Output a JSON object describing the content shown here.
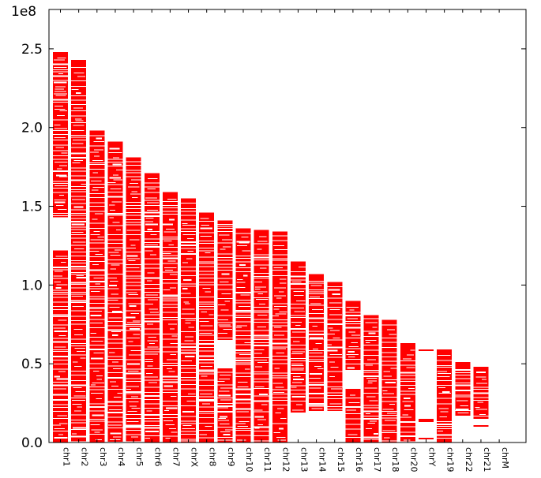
{
  "chart_data": {
    "type": "bar",
    "title": "",
    "xlabel": "",
    "ylabel": "",
    "y_offset_label": "1e8",
    "ylim": [
      0,
      2.75
    ],
    "y_scale_factor": 100000000,
    "y_ticks": [
      0.0,
      0.5,
      1.0,
      1.5,
      2.0,
      2.5
    ],
    "y_tick_labels": [
      "0.0",
      "0.5",
      "1.0",
      "1.5",
      "2.0",
      "2.5"
    ],
    "grid": false,
    "legend": "none",
    "bar_color": "#ff0000",
    "categories": [
      "chr1",
      "chr2",
      "chr3",
      "chr4",
      "chr5",
      "chr6",
      "chr7",
      "chrX",
      "chr8",
      "chr9",
      "chr10",
      "chr11",
      "chr12",
      "chr13",
      "chr14",
      "chr15",
      "chr16",
      "chr17",
      "chr18",
      "chr20",
      "chrY",
      "chr19",
      "chr22",
      "chr21",
      "chrM"
    ],
    "series": [
      {
        "values": [
          2.48,
          2.43,
          1.98,
          1.91,
          1.81,
          1.71,
          1.59,
          1.55,
          1.46,
          1.41,
          1.36,
          1.35,
          1.34,
          1.15,
          1.07,
          1.02,
          0.9,
          0.81,
          0.78,
          0.63,
          0.59,
          0.59,
          0.51,
          0.48,
          0.0
        ],
        "segments": [
          [
            [
              0.0,
              1.22
            ],
            [
              1.43,
              2.48
            ]
          ],
          [
            [
              0.0,
              2.43
            ]
          ],
          [
            [
              0.0,
              1.98
            ]
          ],
          [
            [
              0.0,
              1.91
            ]
          ],
          [
            [
              0.0,
              1.81
            ]
          ],
          [
            [
              0.0,
              1.71
            ]
          ],
          [
            [
              0.0,
              1.59
            ]
          ],
          [
            [
              0.0,
              1.55
            ]
          ],
          [
            [
              0.0,
              1.46
            ]
          ],
          [
            [
              0.0,
              0.47
            ],
            [
              0.65,
              1.41
            ]
          ],
          [
            [
              0.0,
              1.36
            ]
          ],
          [
            [
              0.0,
              1.35
            ]
          ],
          [
            [
              0.0,
              1.34
            ]
          ],
          [
            [
              0.19,
              1.15
            ]
          ],
          [
            [
              0.2,
              1.07
            ]
          ],
          [
            [
              0.2,
              1.02
            ]
          ],
          [
            [
              0.0,
              0.34
            ],
            [
              0.46,
              0.9
            ]
          ],
          [
            [
              0.0,
              0.81
            ]
          ],
          [
            [
              0.0,
              0.78
            ]
          ],
          [
            [
              0.0,
              0.63
            ]
          ],
          [
            [
              0.02,
              0.03
            ],
            [
              0.13,
              0.15
            ],
            [
              0.58,
              0.59
            ]
          ],
          [
            [
              0.0,
              0.59
            ]
          ],
          [
            [
              0.17,
              0.51
            ]
          ],
          [
            [
              0.1,
              0.11
            ],
            [
              0.15,
              0.48
            ]
          ],
          []
        ]
      }
    ]
  }
}
